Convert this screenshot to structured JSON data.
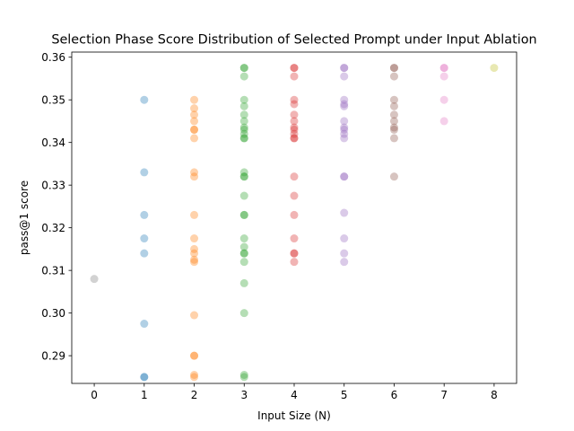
{
  "chart_data": {
    "type": "scatter",
    "title": "Selection Phase Score Distribution of Selected Prompt under Input Ablation",
    "xlabel": "Input Size (N)",
    "ylabel": "pass@1 score",
    "xlim": [
      -0.45,
      8.45
    ],
    "ylim": [
      0.2835,
      0.3612
    ],
    "xticks": [
      0,
      1,
      2,
      3,
      4,
      5,
      6,
      7,
      8
    ],
    "yticks": [
      0.29,
      0.3,
      0.31,
      0.32,
      0.33,
      0.34,
      0.35,
      0.36
    ],
    "ytick_labels": [
      "0.29",
      "0.30",
      "0.31",
      "0.32",
      "0.33",
      "0.34",
      "0.35",
      "0.36"
    ],
    "grid": false,
    "series": [
      {
        "x": 0,
        "color": "#7f7f7f",
        "values": [
          0.308
        ]
      },
      {
        "x": 1,
        "color": "#1f77b4",
        "values": [
          0.35,
          0.333,
          0.323,
          0.3175,
          0.314,
          0.2975,
          0.285,
          0.285
        ]
      },
      {
        "x": 2,
        "color": "#ff7f0e",
        "values": [
          0.35,
          0.348,
          0.3465,
          0.345,
          0.343,
          0.343,
          0.341,
          0.333,
          0.332,
          0.323,
          0.3175,
          0.315,
          0.314,
          0.3125,
          0.312,
          0.2995,
          0.29,
          0.29,
          0.2855,
          0.285
        ]
      },
      {
        "x": 3,
        "color": "#2ca02c",
        "values": [
          0.3575,
          0.3575,
          0.3555,
          0.35,
          0.3485,
          0.3465,
          0.345,
          0.3435,
          0.343,
          0.342,
          0.341,
          0.341,
          0.333,
          0.332,
          0.332,
          0.3275,
          0.323,
          0.323,
          0.3175,
          0.3155,
          0.314,
          0.314,
          0.312,
          0.307,
          0.3,
          0.2855,
          0.285
        ]
      },
      {
        "x": 4,
        "color": "#d62728",
        "values": [
          0.3575,
          0.3575,
          0.3555,
          0.35,
          0.349,
          0.3465,
          0.345,
          0.3435,
          0.343,
          0.342,
          0.341,
          0.341,
          0.332,
          0.3275,
          0.323,
          0.3175,
          0.314,
          0.314,
          0.312
        ]
      },
      {
        "x": 5,
        "color": "#9467bd",
        "values": [
          0.3575,
          0.3575,
          0.3555,
          0.35,
          0.349,
          0.3485,
          0.345,
          0.3435,
          0.343,
          0.342,
          0.341,
          0.332,
          0.332,
          0.3235,
          0.3175,
          0.314,
          0.312
        ]
      },
      {
        "x": 6,
        "color": "#8c564b",
        "values": [
          0.3575,
          0.3575,
          0.3555,
          0.35,
          0.3485,
          0.3465,
          0.345,
          0.3435,
          0.343,
          0.341,
          0.332
        ]
      },
      {
        "x": 7,
        "color": "#e377c2",
        "values": [
          0.3575,
          0.3575,
          0.3555,
          0.35,
          0.345
        ]
      },
      {
        "x": 8,
        "color": "#bcbd22",
        "values": [
          0.3575
        ]
      }
    ],
    "marker_alpha": 0.35
  }
}
